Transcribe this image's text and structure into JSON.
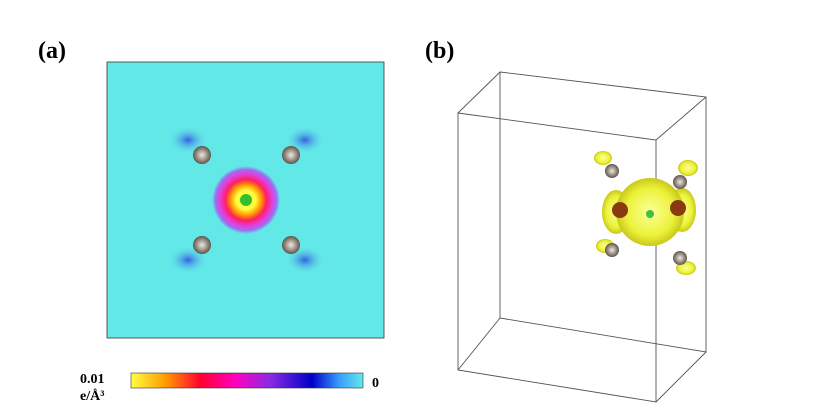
{
  "panels": {
    "a": {
      "label": "(a)"
    },
    "b": {
      "label": "(b)"
    }
  },
  "colorbar": {
    "max_label": "0.01",
    "min_label": "0",
    "unit": "e/Å³"
  }
}
